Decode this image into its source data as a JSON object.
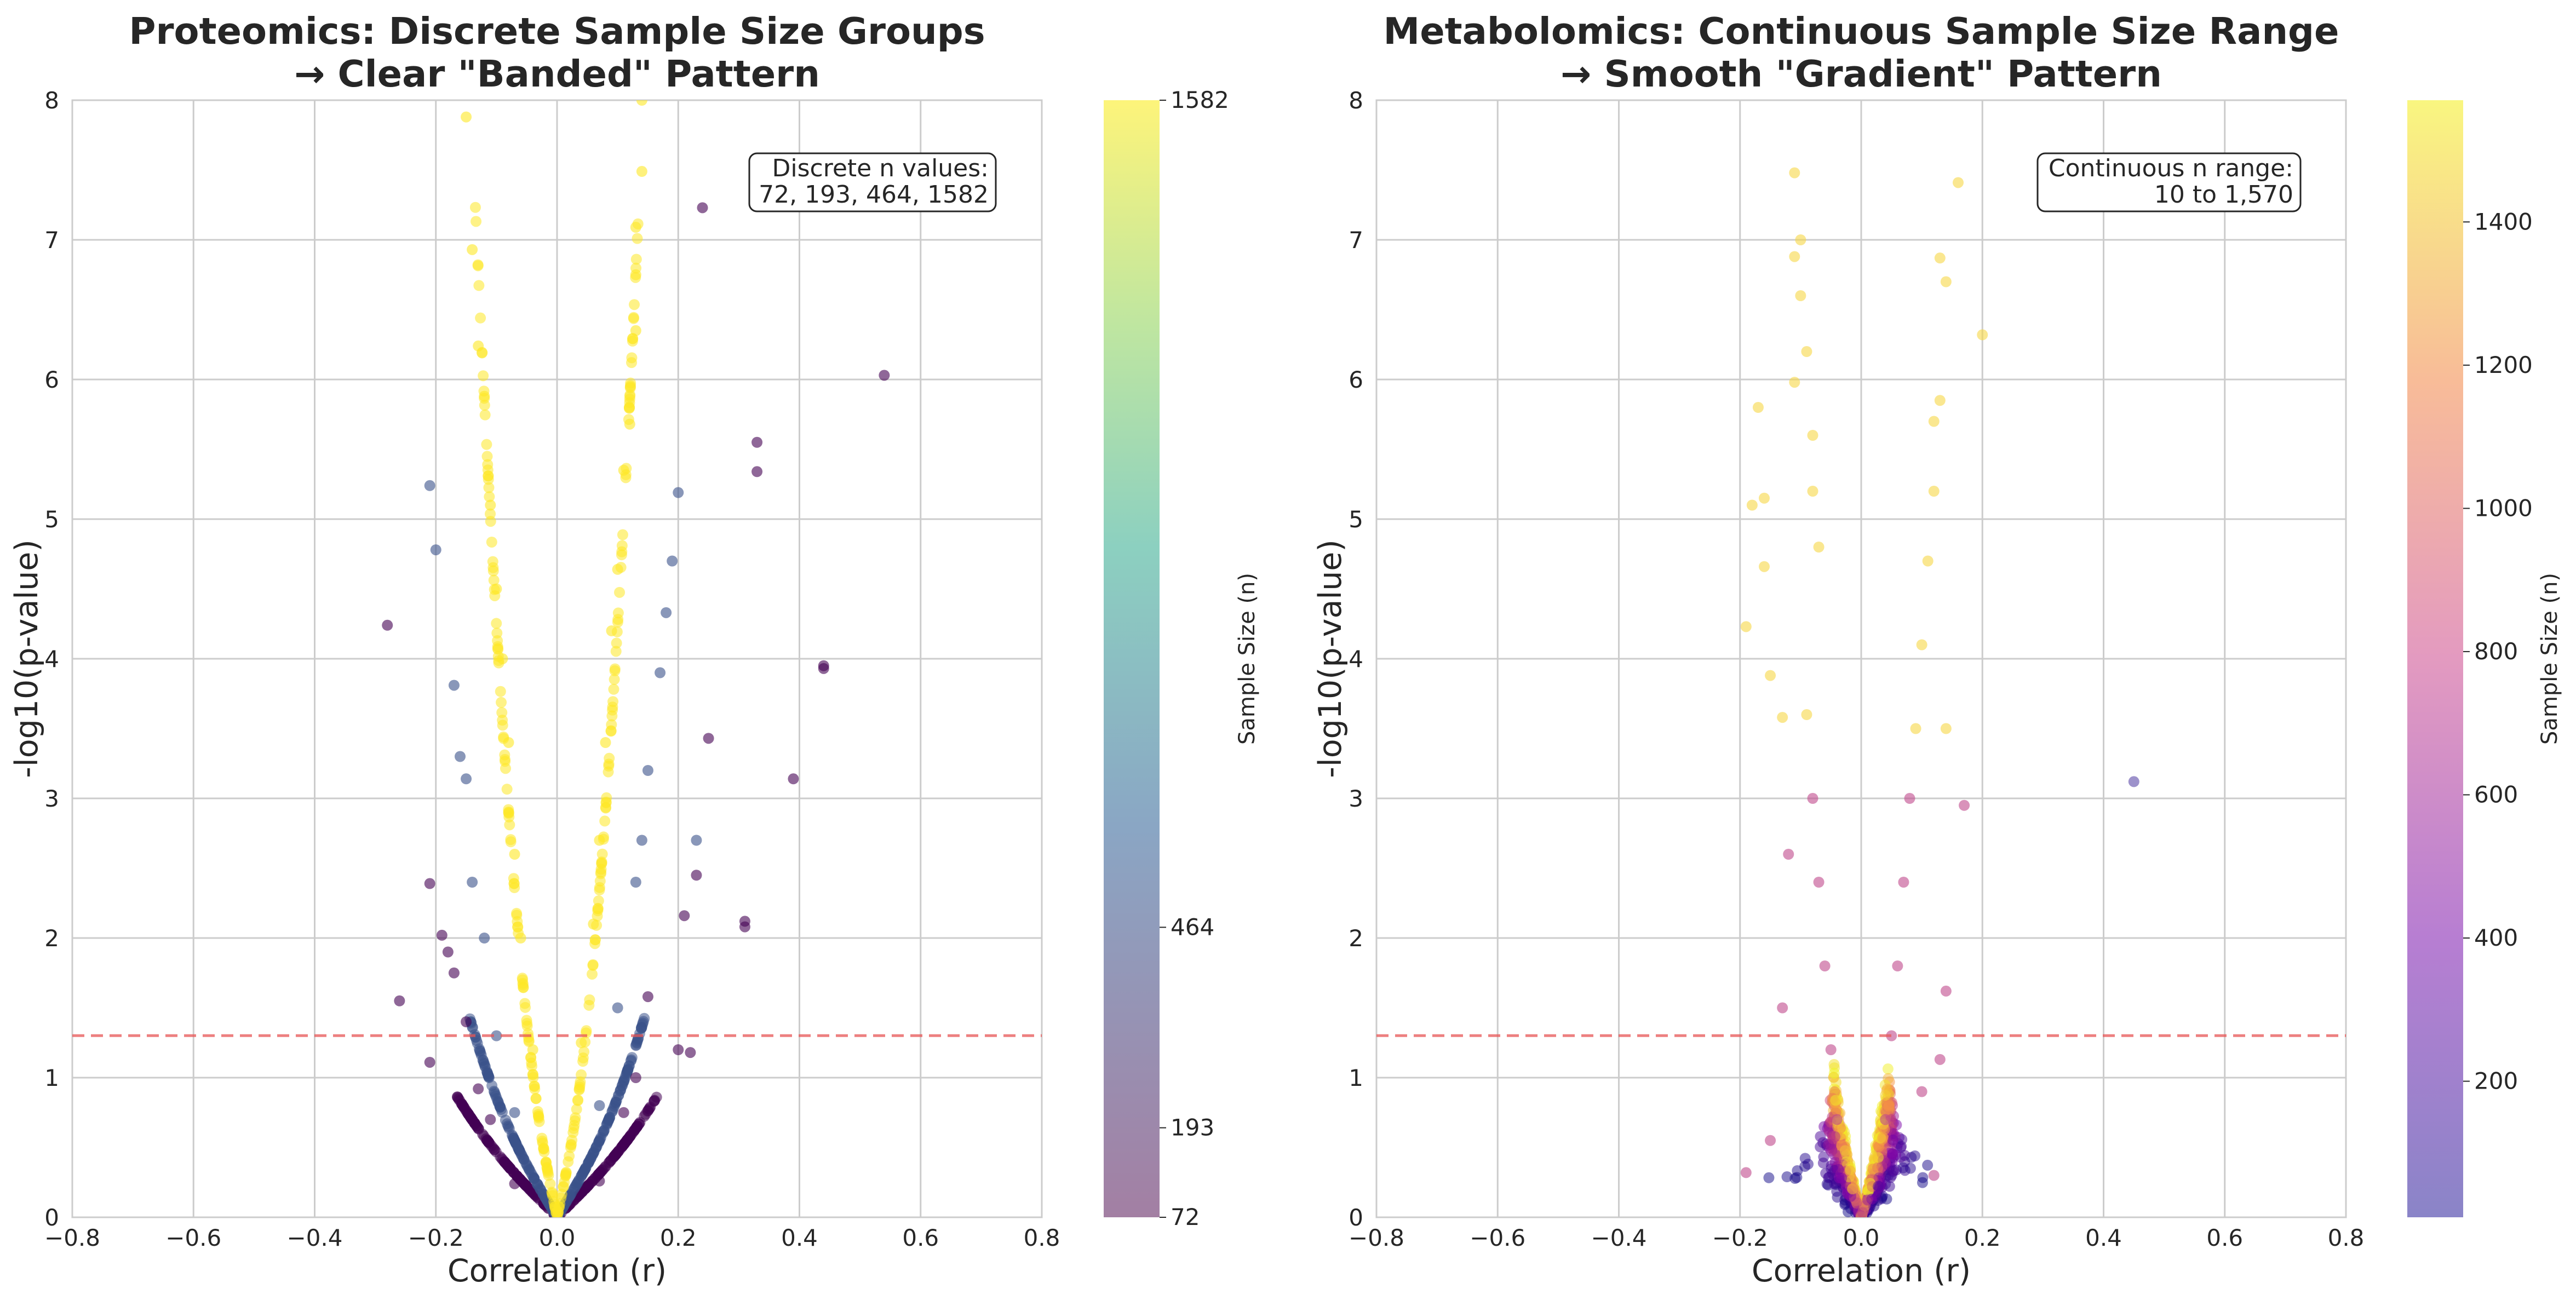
{
  "chart_data": [
    {
      "type": "scatter",
      "title_line1": "Proteomics: Discrete Sample Size Groups",
      "title_line2": "→ Clear \"Banded\" Pattern",
      "xlabel": "Correlation (r)",
      "ylabel": "-log10(p-value)",
      "xlim": [
        -0.8,
        0.8
      ],
      "ylim": [
        0,
        8
      ],
      "xticks": [
        "−0.8",
        "−0.6",
        "−0.4",
        "−0.2",
        "0.0",
        "0.2",
        "0.4",
        "0.6",
        "0.8"
      ],
      "yticks": [
        "0",
        "1",
        "2",
        "3",
        "4",
        "5",
        "6",
        "7",
        "8"
      ],
      "grid": true,
      "threshold_y": 1.301,
      "threshold_color": "#e85656",
      "annotation": {
        "line1": "Discrete n values:",
        "line2": "72, 193, 464, 1582",
        "placement": "top-right"
      },
      "colorbar": {
        "label": "Sample Size (n)",
        "colormap": "viridis",
        "min": 72,
        "max": 1582,
        "tick_values": [
          72,
          193,
          464,
          1582
        ],
        "tick_labels": [
          "72",
          "193",
          "464",
          "1582"
        ]
      },
      "series": [
        {
          "n": 72,
          "color": "#440154",
          "points": [
            [
              -0.28,
              4.24
            ],
            [
              -0.26,
              1.55
            ],
            [
              -0.21,
              2.39
            ],
            [
              -0.21,
              1.11
            ],
            [
              -0.19,
              2.02
            ],
            [
              -0.18,
              1.9
            ],
            [
              -0.17,
              1.75
            ],
            [
              -0.15,
              1.4
            ],
            [
              -0.13,
              0.92
            ],
            [
              -0.11,
              0.7
            ],
            [
              0.11,
              0.75
            ],
            [
              0.13,
              1.0
            ],
            [
              0.15,
              1.58
            ],
            [
              0.2,
              1.2
            ],
            [
              0.21,
              2.16
            ],
            [
              0.22,
              1.18
            ],
            [
              0.23,
              2.45
            ],
            [
              0.25,
              3.43
            ],
            [
              0.31,
              2.08
            ],
            [
              0.31,
              2.12
            ],
            [
              0.33,
              5.34
            ],
            [
              0.33,
              5.55
            ],
            [
              0.39,
              3.14
            ],
            [
              0.44,
              3.93
            ],
            [
              0.44,
              3.95
            ],
            [
              0.54,
              6.03
            ],
            [
              0.24,
              7.23
            ],
            [
              -0.07,
              0.24
            ],
            [
              0.07,
              0.26
            ]
          ]
        },
        {
          "n": 193,
          "color": "#3b528b",
          "points": [
            [
              -0.21,
              5.24
            ],
            [
              -0.2,
              4.78
            ],
            [
              -0.17,
              3.81
            ],
            [
              -0.16,
              3.3
            ],
            [
              -0.15,
              3.14
            ],
            [
              -0.14,
              2.4
            ],
            [
              -0.12,
              2.0
            ],
            [
              -0.1,
              1.3
            ],
            [
              -0.07,
              0.75
            ],
            [
              0.07,
              0.8
            ],
            [
              0.1,
              1.5
            ],
            [
              0.13,
              2.4
            ],
            [
              0.14,
              2.7
            ],
            [
              0.15,
              3.2
            ],
            [
              0.17,
              3.9
            ],
            [
              0.18,
              4.33
            ],
            [
              0.19,
              4.7
            ],
            [
              0.2,
              5.19
            ],
            [
              0.23,
              2.7
            ]
          ]
        },
        {
          "n": 464,
          "color": "#8fa3c4",
          "points": []
        },
        {
          "n": 1582,
          "color": "#fde725",
          "points": [
            [
              -0.15,
              7.88
            ],
            [
              -0.14,
              6.93
            ],
            [
              -0.13,
              6.24
            ],
            [
              -0.12,
              5.88
            ],
            [
              -0.11,
              5.1
            ],
            [
              -0.1,
              4.5
            ],
            [
              -0.09,
              4.0
            ],
            [
              -0.08,
              3.4
            ],
            [
              -0.07,
              2.6
            ],
            [
              -0.06,
              2.0
            ],
            [
              -0.04,
              1.2
            ],
            [
              0.04,
              1.25
            ],
            [
              0.06,
              2.1
            ],
            [
              0.07,
              2.7
            ],
            [
              0.08,
              3.4
            ],
            [
              0.09,
              4.2
            ],
            [
              0.1,
              4.64
            ],
            [
              0.11,
              5.35
            ],
            [
              0.12,
              5.68
            ],
            [
              0.13,
              6.35
            ],
            [
              0.13,
              6.75
            ],
            [
              0.13,
              7.09
            ],
            [
              0.14,
              7.49
            ],
            [
              0.14,
              8.0
            ]
          ]
        }
      ]
    },
    {
      "type": "scatter",
      "title_line1": "Metabolomics: Continuous Sample Size Range",
      "title_line2": "→ Smooth \"Gradient\" Pattern",
      "xlabel": "Correlation (r)",
      "ylabel": "-log10(p-value)",
      "xlim": [
        -0.8,
        0.8
      ],
      "ylim": [
        0,
        8
      ],
      "xticks": [
        "−0.8",
        "−0.6",
        "−0.4",
        "−0.2",
        "0.0",
        "0.2",
        "0.4",
        "0.6",
        "0.8"
      ],
      "yticks": [
        "0",
        "1",
        "2",
        "3",
        "4",
        "5",
        "6",
        "7",
        "8"
      ],
      "grid": true,
      "threshold_y": 1.301,
      "threshold_color": "#e85656",
      "annotation": {
        "line1": "Continuous n range:",
        "line2": "10 to 1,570",
        "placement": "top-right"
      },
      "colorbar": {
        "label": "Sample Size (n)",
        "colormap": "plasma",
        "min": 10,
        "max": 1570,
        "tick_values": [
          200,
          400,
          600,
          800,
          1000,
          1200,
          1400
        ],
        "tick_labels": [
          "200",
          "400",
          "600",
          "800",
          "1000",
          "1200",
          "1400"
        ]
      },
      "points_note_nrange": [
        10,
        1570
      ],
      "series": [
        {
          "name_hidden": true,
          "points": [
            [
              -0.11,
              7.48
            ],
            [
              -0.1,
              7.0
            ],
            [
              -0.11,
              6.88
            ],
            [
              -0.1,
              6.6
            ],
            [
              -0.09,
              6.2
            ],
            [
              -0.11,
              5.98
            ],
            [
              -0.17,
              5.8
            ],
            [
              -0.08,
              5.6
            ],
            [
              -0.08,
              5.2
            ],
            [
              -0.07,
              4.8
            ],
            [
              -0.16,
              5.15
            ],
            [
              -0.18,
              5.1
            ],
            [
              -0.19,
              4.23
            ],
            [
              -0.16,
              4.66
            ],
            [
              -0.15,
              3.88
            ],
            [
              -0.13,
              3.58
            ],
            [
              0.16,
              7.41
            ],
            [
              0.13,
              6.87
            ],
            [
              0.14,
              6.7
            ],
            [
              0.2,
              6.32
            ],
            [
              0.13,
              5.85
            ],
            [
              0.12,
              5.7
            ],
            [
              0.12,
              5.2
            ],
            [
              0.11,
              4.7
            ],
            [
              0.1,
              4.1
            ],
            [
              0.09,
              3.5
            ],
            [
              0.08,
              3.0
            ],
            [
              0.14,
              3.5
            ],
            [
              0.17,
              2.95
            ],
            [
              0.07,
              2.4
            ],
            [
              0.06,
              1.8
            ],
            [
              0.05,
              1.3
            ],
            [
              0.14,
              1.62
            ],
            [
              0.13,
              1.13
            ],
            [
              0.04,
              0.7
            ],
            [
              -0.04,
              0.7
            ],
            [
              -0.05,
              1.2
            ],
            [
              -0.06,
              1.8
            ],
            [
              -0.07,
              2.4
            ],
            [
              -0.08,
              3.0
            ],
            [
              -0.09,
              3.6
            ],
            [
              -0.12,
              2.6
            ],
            [
              -0.19,
              0.32
            ],
            [
              -0.15,
              0.55
            ],
            [
              0.12,
              0.3
            ],
            [
              0.45,
              3.12
            ],
            [
              -0.13,
              1.5
            ],
            [
              0.1,
              0.9
            ]
          ]
        }
      ]
    }
  ]
}
